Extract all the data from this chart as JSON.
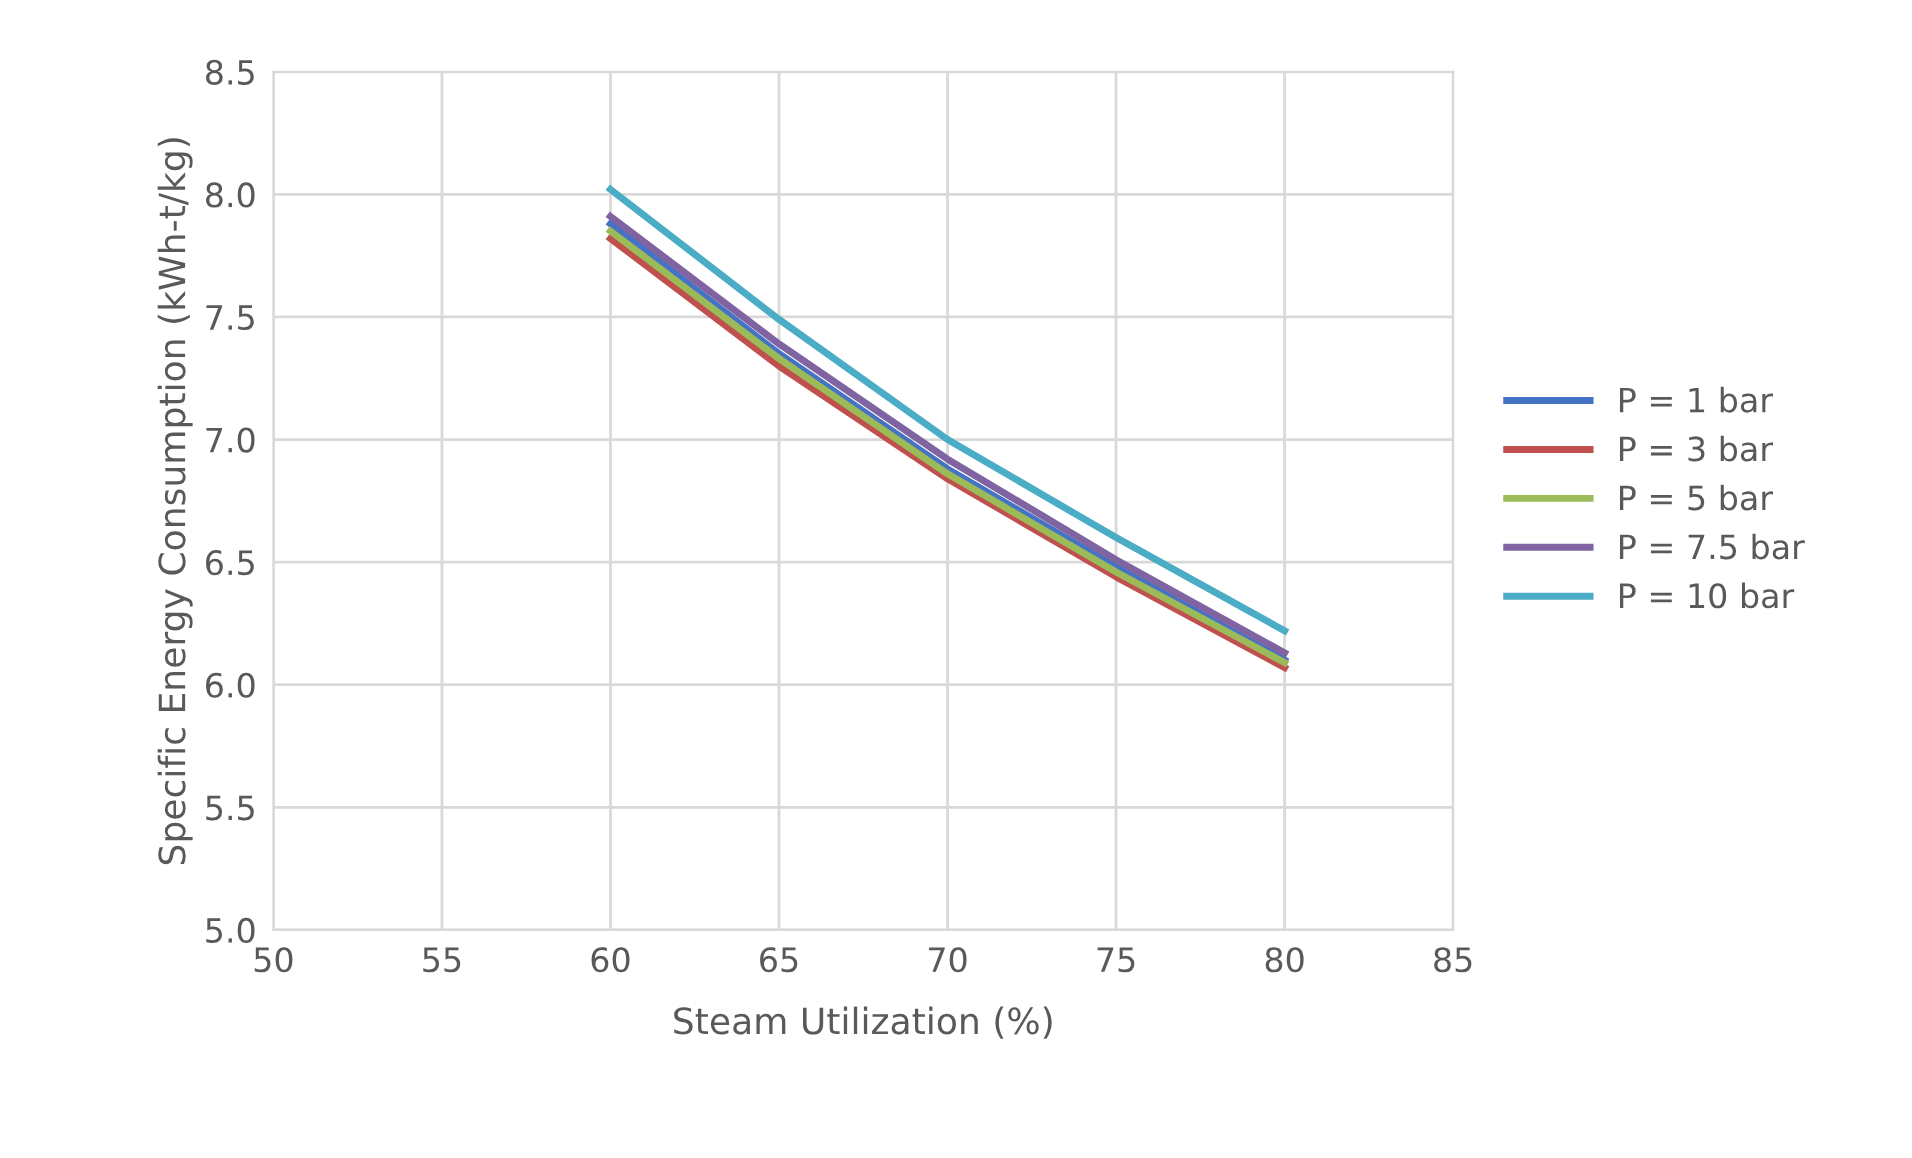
{
  "chart_data": {
    "type": "line",
    "xlabel": "Steam Utilization (%)",
    "ylabel": "Specific Energy Consumption (kWh-t/kg)",
    "x": [
      60,
      65,
      70,
      75,
      80
    ],
    "series": [
      {
        "name": "P = 1 bar",
        "color": "#4472c4",
        "values": [
          7.88,
          7.35,
          6.88,
          6.48,
          6.1
        ]
      },
      {
        "name": "P = 3 bar",
        "color": "#c0504d",
        "values": [
          7.82,
          7.3,
          6.84,
          6.44,
          6.07
        ]
      },
      {
        "name": "P = 5 bar",
        "color": "#9bbb59",
        "values": [
          7.85,
          7.33,
          6.86,
          6.46,
          6.09
        ]
      },
      {
        "name": "P = 7.5 bar",
        "color": "#8064a2",
        "values": [
          7.91,
          7.39,
          6.92,
          6.51,
          6.13
        ]
      },
      {
        "name": "P = 10 bar",
        "color": "#4bacc6",
        "values": [
          8.02,
          7.49,
          7.0,
          6.6,
          6.22
        ]
      }
    ],
    "xlim": [
      50,
      85
    ],
    "xticks": [
      50,
      55,
      60,
      65,
      70,
      75,
      80,
      85
    ],
    "ylim": [
      5.0,
      8.5
    ],
    "yticks": [
      {
        "value": 5.0,
        "label": "5.0"
      },
      {
        "value": 5.5,
        "label": "5.5"
      },
      {
        "value": 6.0,
        "label": "6.0"
      },
      {
        "value": 6.5,
        "label": "6.5"
      },
      {
        "value": 7.0,
        "label": "7.0"
      },
      {
        "value": 7.5,
        "label": "7.5"
      },
      {
        "value": 8.0,
        "label": "8.0"
      },
      {
        "value": 8.5,
        "label": "8.5"
      }
    ],
    "grid": true,
    "legend": "right",
    "marker": "none",
    "line_style": "solid"
  }
}
